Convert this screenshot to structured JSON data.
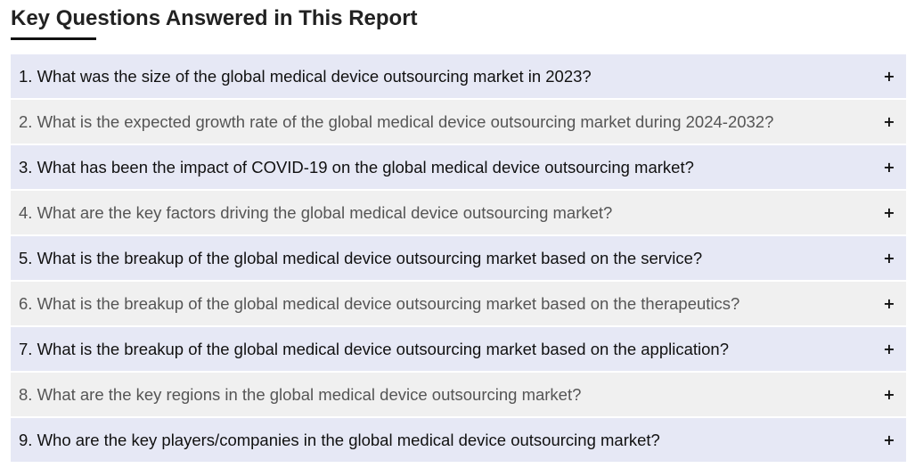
{
  "section": {
    "title": "Key Questions Answered in This Report"
  },
  "faq": {
    "toggle_icon": "plus-icon",
    "toggle_symbol": "+",
    "items": [
      {
        "question": "1. What was the size of the global medical device outsourcing market in 2023?"
      },
      {
        "question": "2. What is the expected growth rate of the global medical device outsourcing market during 2024-2032?"
      },
      {
        "question": "3. What has been the impact of COVID-19 on the global medical device outsourcing market?"
      },
      {
        "question": "4. What are the key factors driving the global medical device outsourcing market?"
      },
      {
        "question": "5. What is the breakup of the global medical device outsourcing market based on the service?"
      },
      {
        "question": "6. What is the breakup of the global medical device outsourcing market based on the therapeutics?"
      },
      {
        "question": "7. What is the breakup of the global medical device outsourcing market based on the application?"
      },
      {
        "question": "8. What are the key regions in the global medical device outsourcing market?"
      },
      {
        "question": "9. Who are the key players/companies in the global medical device outsourcing market?"
      }
    ]
  },
  "colors": {
    "odd_row_bg": "#e6e8f5",
    "even_row_bg": "#f0f0f0",
    "odd_row_text": "#111111",
    "even_row_text": "#555555",
    "title_text": "#222222"
  }
}
